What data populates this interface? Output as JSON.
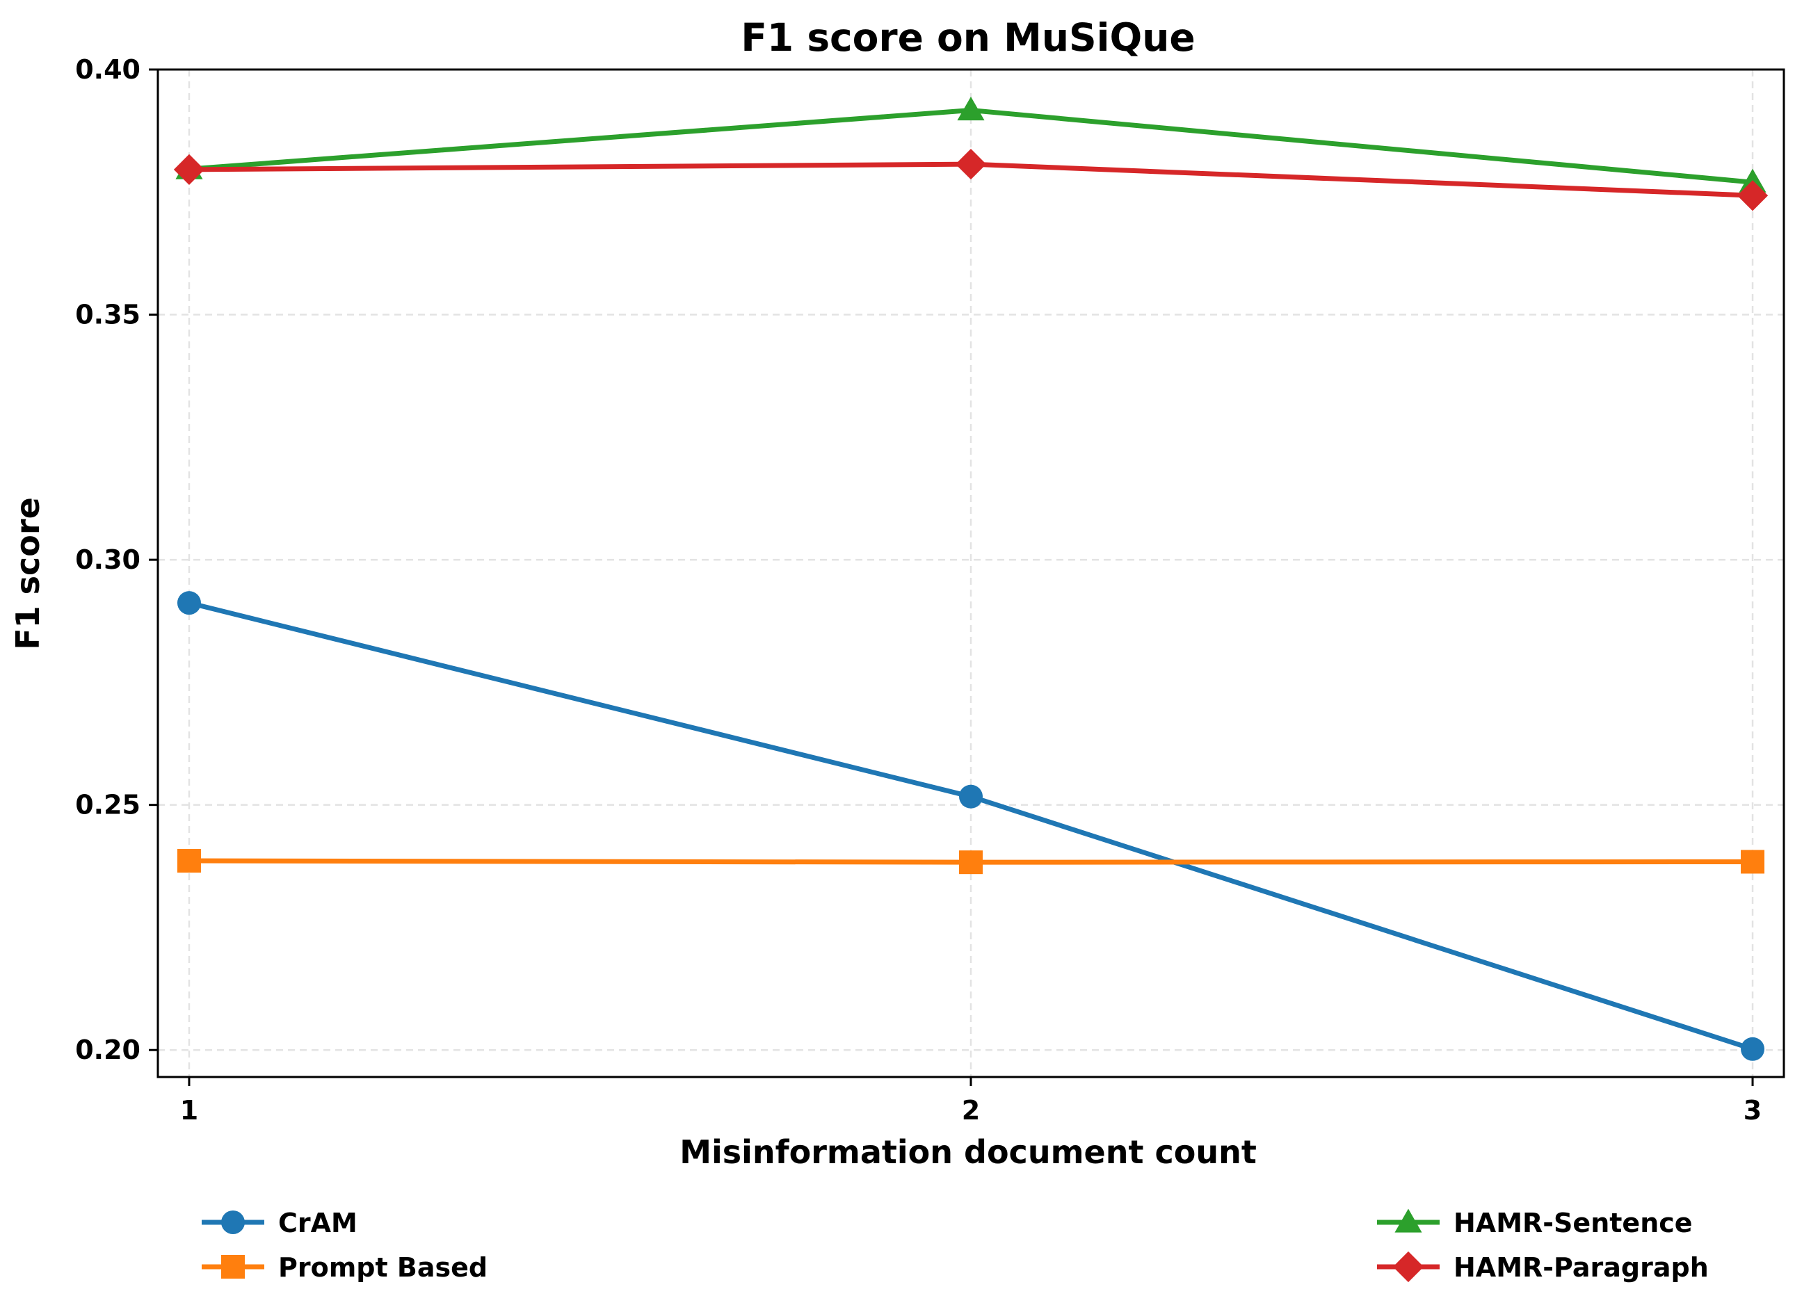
{
  "chart_data": {
    "type": "line",
    "title": "F1 score on MuSiQue",
    "xlabel": "Misinformation document count",
    "ylabel": "F1 score",
    "x": [
      1,
      2,
      3
    ],
    "x_ticks": [
      "1",
      "2",
      "3"
    ],
    "y_ticks": [
      "0.20",
      "0.25",
      "0.30",
      "0.35",
      "0.40"
    ],
    "xlim": [
      0.96,
      3.04
    ],
    "ylim": [
      0.1945,
      0.4
    ],
    "grid": true,
    "legend_placement": "below",
    "series": [
      {
        "name": "CrAM",
        "values": [
          0.2912,
          0.2517,
          0.2002
        ],
        "color": "#1f77b4",
        "marker": "circle"
      },
      {
        "name": "Prompt Based",
        "values": [
          0.2386,
          0.2383,
          0.2384
        ],
        "color": "#ff7f0e",
        "marker": "square"
      },
      {
        "name": "HAMR-Sentence",
        "values": [
          0.3797,
          0.3917,
          0.377
        ],
        "color": "#2ca02c",
        "marker": "triangle"
      },
      {
        "name": "HAMR-Paragraph",
        "values": [
          0.3796,
          0.3807,
          0.3743
        ],
        "color": "#d62728",
        "marker": "diamond"
      }
    ]
  }
}
